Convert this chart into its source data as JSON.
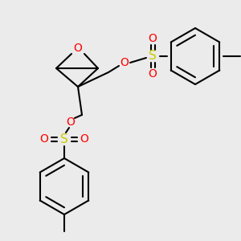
{
  "bg_color": "#ebebeb",
  "bond_color": "#000000",
  "oxygen_color": "#ff0000",
  "sulfur_color": "#cccc00",
  "lw": 1.5,
  "figsize": [
    3.0,
    3.0
  ],
  "dpi": 100,
  "xlim": [
    0,
    300
  ],
  "ylim": [
    0,
    300
  ]
}
